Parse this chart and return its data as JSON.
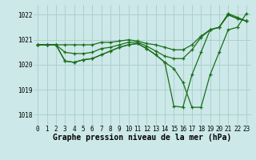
{
  "background_color": "#cce8e8",
  "grid_color": "#aacccc",
  "line_color": "#1a6e1a",
  "xlabel": "Graphe pression niveau de la mer (hPa)",
  "xlim": [
    -0.5,
    23.5
  ],
  "ylim": [
    1017.6,
    1022.4
  ],
  "yticks": [
    1018,
    1019,
    1020,
    1021,
    1022
  ],
  "xticks": [
    0,
    1,
    2,
    3,
    4,
    5,
    6,
    7,
    8,
    9,
    10,
    11,
    12,
    13,
    14,
    15,
    16,
    17,
    18,
    19,
    20,
    21,
    22,
    23
  ],
  "series": [
    {
      "x": [
        0,
        1,
        2,
        3,
        4,
        5,
        6,
        7,
        8,
        9,
        10,
        11,
        12,
        13,
        14,
        15,
        16,
        17,
        18,
        19,
        20,
        21,
        22,
        23
      ],
      "y": [
        1020.8,
        1020.8,
        1020.8,
        1020.8,
        1020.8,
        1020.8,
        1020.8,
        1020.9,
        1020.9,
        1020.95,
        1021.0,
        1020.95,
        1020.85,
        1020.8,
        1020.7,
        1020.6,
        1020.6,
        1020.8,
        1021.15,
        1021.4,
        1021.5,
        1022.0,
        1021.85,
        1021.75
      ]
    },
    {
      "x": [
        0,
        1,
        2,
        3,
        4,
        5,
        6,
        7,
        8,
        9,
        10,
        11,
        12,
        13,
        14,
        15,
        16,
        17,
        18,
        19,
        20,
        21,
        22,
        23
      ],
      "y": [
        1020.8,
        1020.8,
        1020.8,
        1020.5,
        1020.45,
        1020.45,
        1020.5,
        1020.65,
        1020.7,
        1020.8,
        1020.9,
        1020.9,
        1020.75,
        1020.55,
        1020.35,
        1020.25,
        1020.25,
        1020.6,
        1021.1,
        1021.4,
        1021.5,
        1022.0,
        1021.85,
        1021.75
      ]
    },
    {
      "x": [
        0,
        1,
        2,
        3,
        4,
        5,
        6,
        7,
        8,
        9,
        10,
        11,
        12,
        13,
        14,
        15,
        16,
        17,
        18,
        19,
        20,
        21,
        22,
        23
      ],
      "y": [
        1020.8,
        1020.8,
        1020.8,
        1020.15,
        1020.1,
        1020.2,
        1020.25,
        1020.4,
        1020.55,
        1020.7,
        1020.8,
        1020.85,
        1020.65,
        1020.4,
        1020.1,
        1019.85,
        1019.3,
        1018.3,
        1018.3,
        1019.6,
        1020.5,
        1021.4,
        1021.5,
        1022.05
      ]
    },
    {
      "x": [
        0,
        1,
        2,
        3,
        4,
        5,
        6,
        7,
        8,
        9,
        10,
        11,
        12,
        13,
        14,
        15,
        16,
        17,
        18,
        19,
        20,
        21,
        22,
        23
      ],
      "y": [
        1020.8,
        1020.8,
        1020.8,
        1020.15,
        1020.1,
        1020.2,
        1020.25,
        1020.4,
        1020.55,
        1020.7,
        1020.8,
        1020.85,
        1020.65,
        1020.4,
        1020.1,
        1018.35,
        1018.3,
        1019.6,
        1020.5,
        1021.4,
        1021.5,
        1022.05,
        1021.9,
        1021.75
      ]
    }
  ],
  "xlabel_fontsize": 7,
  "tick_fontsize": 5.5,
  "linewidth": 0.9,
  "markersize": 2.5
}
